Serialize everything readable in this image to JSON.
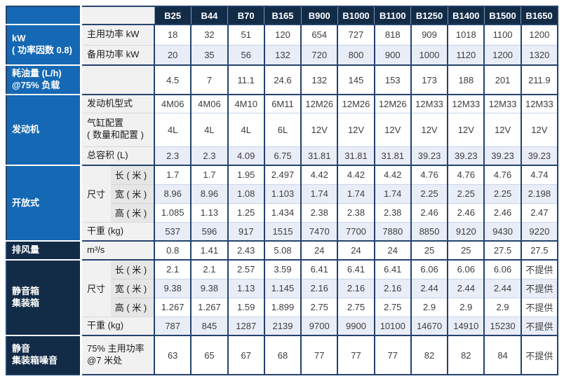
{
  "colors": {
    "section_blue": "#1568b3",
    "section_navy": "#122b47",
    "border_navy": "#24436e",
    "row_tint": "#e9edf7",
    "label_column_bg": "#f1f1f1"
  },
  "table": {
    "columns": [
      "B25",
      "B44",
      "B70",
      "B165",
      "B900",
      "B1000",
      "B1100",
      "B1250",
      "B1400",
      "B1500",
      "B1650"
    ],
    "sections": [
      {
        "id": "kw",
        "label": "kW\n( 功率因数 0.8)",
        "color": "blue",
        "rows": [
          {
            "label": "主用功率 kW",
            "tint": false,
            "values": [
              "18",
              "32",
              "51",
              "120",
              "654",
              "727",
              "818",
              "909",
              "1018",
              "1100",
              "1200"
            ]
          },
          {
            "label": "备用功率 kW",
            "tint": true,
            "values": [
              "20",
              "35",
              "56",
              "132",
              "720",
              "800",
              "900",
              "1000",
              "1120",
              "1200",
              "1320"
            ]
          }
        ]
      },
      {
        "id": "fuel",
        "label": "耗油量 (L/h)\n@75% 负载",
        "color": "blue",
        "rows": [
          {
            "label": "",
            "tint": false,
            "values": [
              "4.5",
              "7",
              "11.1",
              "24.6",
              "132",
              "145",
              "153",
              "173",
              "188",
              "201",
              "211.9"
            ]
          }
        ]
      },
      {
        "id": "engine",
        "label": "发动机",
        "color": "blue",
        "rows": [
          {
            "label": "发动机型式",
            "tint": false,
            "values": [
              "4M06",
              "4M06",
              "4M10",
              "6M11",
              "12M26",
              "12M26",
              "12M26",
              "12M33",
              "12M33",
              "12M33",
              "12M33"
            ]
          },
          {
            "label": "气缸配置\n( 数量和配置 )",
            "tint": false,
            "values": [
              "4L",
              "4L",
              "4L",
              "6L",
              "12V",
              "12V",
              "12V",
              "12V",
              "12V",
              "12V",
              "12V"
            ]
          },
          {
            "label": "总容积 (L)",
            "tint": true,
            "values": [
              "2.3",
              "2.3",
              "4.09",
              "6.75",
              "31.81",
              "31.81",
              "31.81",
              "39.23",
              "39.23",
              "39.23",
              "39.23"
            ]
          }
        ]
      },
      {
        "id": "open",
        "label": "开放式",
        "color": "blue",
        "group_label": "尺寸",
        "rows": [
          {
            "label": "长 ( 米 )",
            "dim": true,
            "tint": false,
            "values": [
              "1.7",
              "1.7",
              "1.95",
              "2.497",
              "4.42",
              "4.42",
              "4.42",
              "4.76",
              "4.76",
              "4.76",
              "4.74"
            ]
          },
          {
            "label": "宽 ( 米 )",
            "dim": true,
            "tint": true,
            "values": [
              "8.96",
              "8.96",
              "1.08",
              "1.103",
              "1.74",
              "1.74",
              "1.74",
              "2.25",
              "2.25",
              "2.25",
              "2.198"
            ]
          },
          {
            "label": "高 ( 米 )",
            "dim": true,
            "tint": false,
            "values": [
              "1.085",
              "1.13",
              "1.25",
              "1.434",
              "2.38",
              "2.38",
              "2.38",
              "2.46",
              "2.46",
              "2.46",
              "2.47"
            ]
          },
          {
            "label": "干重 (kg)",
            "tint": true,
            "values": [
              "537",
              "596",
              "917",
              "1515",
              "7470",
              "7700",
              "7880",
              "8850",
              "9120",
              "9430",
              "9220"
            ]
          }
        ]
      },
      {
        "id": "airflow",
        "label": "排风量",
        "color": "navy",
        "rows": [
          {
            "label": "m³/s",
            "tint": false,
            "values": [
              "0.8",
              "1.41",
              "2.43",
              "5.08",
              "24",
              "24",
              "24",
              "25",
              "25",
              "27.5",
              "27.5"
            ]
          }
        ]
      },
      {
        "id": "canopy",
        "label": "静音箱\n集装箱",
        "color": "navy",
        "group_label": "尺寸",
        "rows": [
          {
            "label": "长 ( 米 )",
            "dim": true,
            "tint": false,
            "values": [
              "2.1",
              "2.1",
              "2.57",
              "3.59",
              "6.41",
              "6.41",
              "6.41",
              "6.06",
              "6.06",
              "6.06",
              "不提供"
            ]
          },
          {
            "label": "宽 ( 米 )",
            "dim": true,
            "tint": true,
            "values": [
              "9.38",
              "9.38",
              "1.13",
              "1.145",
              "2.16",
              "2.16",
              "2.16",
              "2.44",
              "2.44",
              "2.44",
              "不提供"
            ]
          },
          {
            "label": "高 ( 米 )",
            "dim": true,
            "tint": false,
            "values": [
              "1.267",
              "1.267",
              "1.59",
              "1.899",
              "2.75",
              "2.75",
              "2.75",
              "2.9",
              "2.9",
              "2.9",
              "不提供"
            ]
          },
          {
            "label": "干重 (kg)",
            "tint": true,
            "values": [
              "787",
              "845",
              "1287",
              "2139",
              "9700",
              "9900",
              "10100",
              "14670",
              "14910",
              "15230",
              "不提供"
            ]
          }
        ]
      },
      {
        "id": "noise",
        "label": "静音\n集装箱噪音",
        "color": "navy",
        "rows": [
          {
            "label": "75% 主用功率\n@7 米处",
            "tint": false,
            "values": [
              "63",
              "65",
              "67",
              "68",
              "77",
              "77",
              "77",
              "82",
              "82",
              "84",
              "不提供"
            ]
          }
        ]
      }
    ]
  }
}
